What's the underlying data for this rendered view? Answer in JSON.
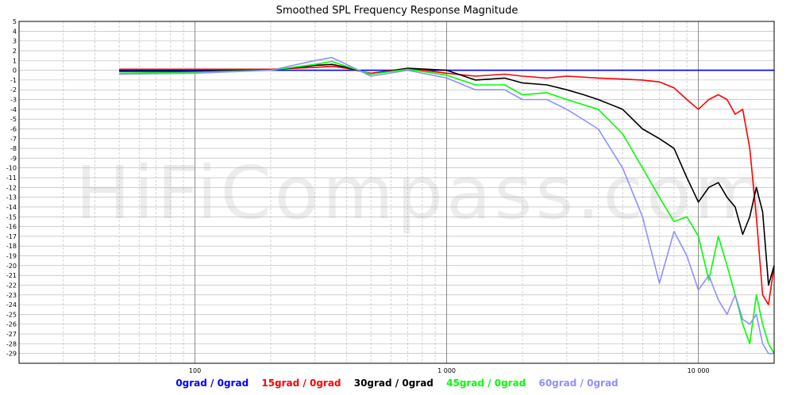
{
  "chart_data": {
    "type": "line",
    "title": "Smoothed SPL Frequency Response Magnitude",
    "watermark": "HiFiCompass.com",
    "xscale": "log",
    "xlim": [
      20,
      20000
    ],
    "ylim": [
      -30,
      5
    ],
    "x_tick_labels": [
      {
        "value": 100,
        "label": "100"
      },
      {
        "value": 1000,
        "label": "1 000"
      },
      {
        "value": 10000,
        "label": "10 000"
      }
    ],
    "y_tick_labels": [
      5,
      4,
      3,
      2,
      1,
      0,
      -1,
      -2,
      -3,
      -4,
      -5,
      -6,
      -7,
      -8,
      -9,
      -10,
      -11,
      -12,
      -13,
      -14,
      -15,
      -16,
      -17,
      -18,
      -19,
      -20,
      -21,
      -22,
      -23,
      -24,
      -25,
      -26,
      -27,
      -28,
      -29
    ],
    "grid": true,
    "legend_position": "bottom",
    "series": [
      {
        "name": "0grad / 0grad",
        "color": "#0000ff",
        "x": [
          50,
          100,
          200,
          500,
          1000,
          2000,
          5000,
          10000,
          15000,
          20000
        ],
        "y": [
          0,
          0,
          0,
          0,
          0,
          0,
          0,
          0,
          0,
          0
        ]
      },
      {
        "name": "15grad / 0grad",
        "color": "#ff0000",
        "x": [
          50,
          100,
          200,
          300,
          350,
          400,
          500,
          700,
          1000,
          1300,
          1700,
          2000,
          2500,
          3000,
          4000,
          5000,
          6000,
          7000,
          8000,
          9000,
          10000,
          11000,
          12000,
          13000,
          14000,
          15000,
          16000,
          17000,
          18000,
          19000,
          20000
        ],
        "y": [
          0.1,
          0.1,
          0.1,
          0.3,
          0.4,
          0.2,
          -0.3,
          0.2,
          -0.3,
          -0.6,
          -0.4,
          -0.6,
          -0.8,
          -0.6,
          -0.8,
          -0.9,
          -1,
          -1.2,
          -1.8,
          -3,
          -4,
          -3,
          -2.5,
          -3,
          -4.5,
          -4,
          -8,
          -15,
          -23,
          -24,
          -20
        ],
        "y_note": "",
        "x_ext": [],
        "y_ext": []
      },
      {
        "name": "30grad / 0grad",
        "color": "#000000",
        "x": [
          50,
          100,
          200,
          300,
          350,
          400,
          500,
          700,
          1000,
          1300,
          1700,
          2000,
          2500,
          3000,
          3500,
          4000,
          5000,
          6000,
          7000,
          8000,
          9000,
          10000,
          11000,
          12000,
          13000,
          14000,
          15000,
          16000,
          17000,
          18000,
          19000,
          20000
        ],
        "y": [
          -0.1,
          -0.1,
          0,
          0.5,
          0.6,
          0.3,
          -0.4,
          0.2,
          0,
          -1,
          -0.8,
          -1.3,
          -1.5,
          -2,
          -2.5,
          -3,
          -4,
          -6,
          -7,
          -8,
          -11,
          -13.5,
          -12,
          -11.5,
          -13,
          -14,
          -16.8,
          -15,
          -12,
          -14.5,
          -22,
          -20
        ],
        "x_ext": [],
        "y_ext": []
      },
      {
        "name": "45grad / 0grad",
        "color": "#00ff00",
        "x": [
          50,
          100,
          200,
          300,
          350,
          400,
          500,
          700,
          1000,
          1300,
          1700,
          2000,
          2500,
          3000,
          4000,
          5000,
          6000,
          7000,
          8000,
          9000,
          10000,
          11000,
          12000,
          13000,
          14000,
          15000,
          16000,
          17000,
          18000,
          19000,
          20000
        ],
        "y": [
          -0.3,
          -0.2,
          0,
          0.6,
          0.9,
          0.4,
          -0.4,
          0.1,
          -0.5,
          -1.5,
          -1.5,
          -2.5,
          -2.3,
          -3,
          -4,
          -6.5,
          -10,
          -13,
          -15.5,
          -15,
          -17,
          -21.5,
          -17,
          -20,
          -23,
          -26,
          -28,
          -23,
          -26,
          -28,
          -29
        ],
        "x_ext": [],
        "y_ext": []
      },
      {
        "name": "60grad / 0grad",
        "color": "#8f8fff",
        "x": [
          50,
          100,
          200,
          300,
          350,
          400,
          500,
          700,
          1000,
          1300,
          1700,
          2000,
          2500,
          3000,
          4000,
          5000,
          6000,
          7000,
          8000,
          9000,
          10000,
          11000,
          12000,
          13000,
          14000,
          15000,
          16000,
          17000,
          18000,
          19000,
          20000
        ],
        "y": [
          -0.4,
          -0.3,
          0,
          1,
          1.3,
          0.6,
          -0.6,
          0,
          -0.8,
          -2,
          -2,
          -3,
          -3,
          -4,
          -6,
          -10,
          -15,
          -21.8,
          -16.5,
          -19,
          -22.5,
          -21,
          -23.5,
          -25,
          -23,
          -25.5,
          -26,
          -25,
          -28,
          -29,
          -29
        ],
        "x_ext": [],
        "y_ext": []
      }
    ]
  },
  "legend": {
    "items": [
      "0grad / 0grad",
      "15grad / 0grad",
      "30grad / 0grad",
      "45grad / 0grad",
      "60grad / 0grad"
    ]
  }
}
